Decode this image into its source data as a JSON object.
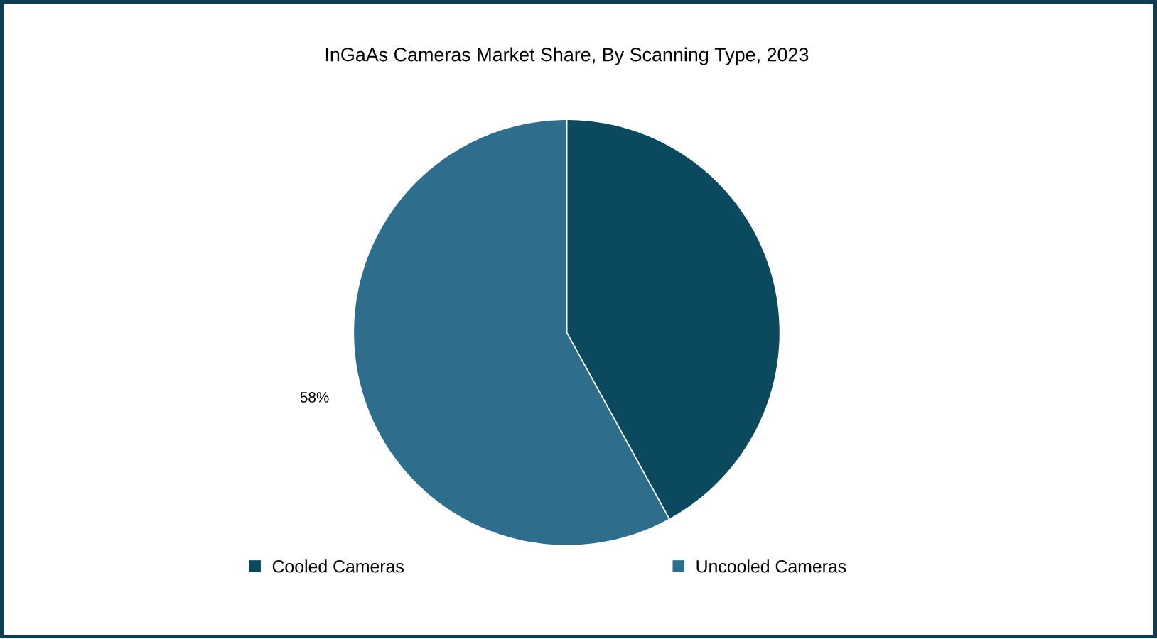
{
  "chart_data": {
    "type": "pie",
    "title": "InGaAs Cameras Market Share, By Scanning Type, 2023",
    "categories": [
      "Cooled Cameras",
      "Uncooled Cameras"
    ],
    "values": [
      42,
      58
    ],
    "colors": [
      "#0b4a5e",
      "#2f6d8c"
    ],
    "value_labels": [
      null,
      "58%"
    ],
    "legend": "bottom"
  }
}
